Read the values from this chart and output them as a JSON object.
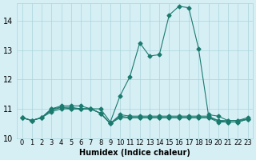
{
  "xlabel": "Humidex (Indice chaleur)",
  "ylabel": "",
  "bg_color": "#d6eff5",
  "grid_color": "#aad4dc",
  "line_color": "#1a7a6e",
  "xlim": [
    -0.5,
    23.5
  ],
  "ylim": [
    10,
    14.6
  ],
  "yticks": [
    10,
    11,
    12,
    13,
    14
  ],
  "xtick_labels": [
    "0",
    "1",
    "2",
    "3",
    "4",
    "5",
    "6",
    "7",
    "8",
    "9",
    "10",
    "11",
    "12",
    "13",
    "14",
    "15",
    "16",
    "17",
    "18",
    "19",
    "20",
    "21",
    "22",
    "23"
  ],
  "series": [
    [
      10.7,
      10.6,
      10.7,
      11.0,
      11.1,
      11.1,
      11.1,
      11.0,
      11.0,
      10.55,
      11.45,
      12.1,
      13.25,
      12.8,
      12.85,
      14.2,
      14.5,
      14.45,
      13.05,
      10.8,
      10.75,
      10.6,
      10.6,
      10.65
    ],
    [
      10.7,
      10.6,
      10.7,
      11.0,
      11.05,
      11.05,
      11.0,
      11.0,
      10.85,
      10.5,
      10.8,
      10.75,
      10.75,
      10.75,
      10.75,
      10.75,
      10.75,
      10.75,
      10.75,
      10.75,
      10.6,
      10.6,
      10.6,
      10.7
    ],
    [
      10.7,
      10.6,
      10.7,
      10.95,
      11.05,
      11.0,
      11.0,
      11.0,
      10.85,
      10.5,
      10.75,
      10.7,
      10.7,
      10.7,
      10.7,
      10.7,
      10.7,
      10.7,
      10.7,
      10.7,
      10.6,
      10.55,
      10.55,
      10.65
    ],
    [
      10.7,
      10.6,
      10.7,
      10.9,
      11.0,
      11.0,
      11.0,
      11.0,
      10.85,
      10.5,
      10.7,
      10.7,
      10.7,
      10.7,
      10.7,
      10.7,
      10.7,
      10.7,
      10.7,
      10.7,
      10.55,
      10.55,
      10.55,
      10.65
    ]
  ]
}
